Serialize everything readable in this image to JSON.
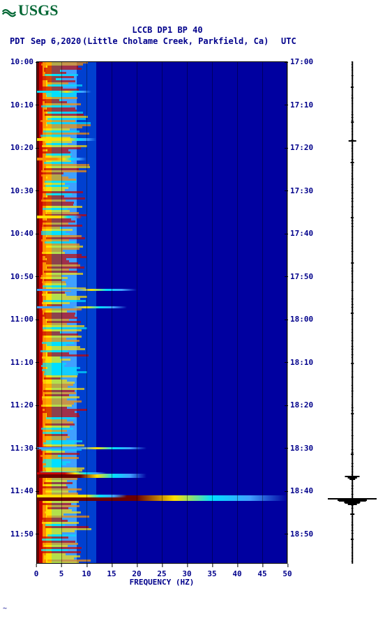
{
  "logo_text": "USGS",
  "title": "LCCB DP1 BP 40",
  "tz_left": "PDT",
  "date": "Sep 6,2020",
  "location": "(Little Cholame Creek, Parkfield, Ca)",
  "tz_right": "UTC",
  "xlabel": "FREQUENCY (HZ)",
  "footer": "~",
  "spectrogram": {
    "type": "spectrogram",
    "background_color": "#0000a0",
    "xlim": [
      0,
      50
    ],
    "ylim_left": [
      "10:00",
      "11:50"
    ],
    "ylim_right": [
      "17:00",
      "18:50"
    ],
    "x_ticks": [
      0,
      5,
      10,
      15,
      20,
      25,
      30,
      35,
      40,
      45,
      50
    ],
    "left_time_ticks": [
      "10:00",
      "10:10",
      "10:20",
      "10:30",
      "10:40",
      "10:50",
      "11:00",
      "11:10",
      "11:20",
      "11:30",
      "11:40",
      "11:50"
    ],
    "right_time_ticks": [
      "17:00",
      "17:10",
      "17:20",
      "17:30",
      "17:40",
      "17:50",
      "18:00",
      "18:10",
      "18:20",
      "18:30",
      "18:40",
      "18:50"
    ],
    "palette": {
      "darkred": "#6b0000",
      "red": "#c80000",
      "orange": "#ff9000",
      "yellow": "#ffe000",
      "cyan": "#00e0ff",
      "lightblue": "#40a0ff",
      "blue": "#0040d0",
      "darkblue": "#0000a0"
    },
    "bands": [
      {
        "freq_from": 0,
        "freq_to": 0.6,
        "color": "#6b0000"
      },
      {
        "freq_from": 0.6,
        "freq_to": 1.2,
        "color": "#c80000"
      },
      {
        "freq_from": 1.2,
        "freq_to": 2.0,
        "color": "#ff9000"
      },
      {
        "freq_from": 2.0,
        "freq_to": 3.0,
        "color": "#ffe000"
      },
      {
        "freq_from": 3.0,
        "freq_to": 5.0,
        "color": "#00e0ff"
      },
      {
        "freq_from": 5.0,
        "freq_to": 8.0,
        "color": "#40a0ff"
      },
      {
        "freq_from": 8.0,
        "freq_to": 12.0,
        "color": "#0040d0"
      },
      {
        "freq_from": 12.0,
        "freq_to": 50.0,
        "color": "#0000a0"
      }
    ],
    "events": [
      {
        "time_frac": 0.825,
        "freq_to": 22,
        "intensity": "#6b0000",
        "height": 6
      },
      {
        "time_frac": 0.82,
        "freq_to": 14,
        "intensity": "#c80000",
        "height": 3
      },
      {
        "time_frac": 0.87,
        "freq_to": 50,
        "intensity": "#6b0000",
        "height": 8
      },
      {
        "time_frac": 0.865,
        "freq_to": 18,
        "intensity": "#ffe000",
        "height": 4
      },
      {
        "time_frac": 0.155,
        "freq_to": 12,
        "intensity": "#ffe000",
        "height": 4
      },
      {
        "time_frac": 0.195,
        "freq_to": 10,
        "intensity": "#ff9000",
        "height": 4
      },
      {
        "time_frac": 0.31,
        "freq_to": 9,
        "intensity": "#ffe000",
        "height": 4
      },
      {
        "time_frac": 0.06,
        "freq_to": 11,
        "intensity": "#00e0ff",
        "height": 3
      },
      {
        "time_frac": 0.455,
        "freq_to": 20,
        "intensity": "#40a0ff",
        "height": 3
      },
      {
        "time_frac": 0.49,
        "freq_to": 18,
        "intensity": "#40a0ff",
        "height": 3
      },
      {
        "time_frac": 0.77,
        "freq_to": 22,
        "intensity": "#40a0ff",
        "height": 3
      }
    ],
    "gridline_color": "#000000",
    "tick_fontsize": 11,
    "label_fontsize": 11,
    "text_color": "#00008b"
  },
  "waveform": {
    "type": "seismogram",
    "line_color": "#000000",
    "baseline_width": 1.5,
    "spikes": [
      {
        "time_frac": 0.05,
        "amp": 0.06
      },
      {
        "time_frac": 0.12,
        "amp": 0.05
      },
      {
        "time_frac": 0.157,
        "amp": 0.15
      },
      {
        "time_frac": 0.2,
        "amp": 0.07
      },
      {
        "time_frac": 0.31,
        "amp": 0.06
      },
      {
        "time_frac": 0.4,
        "amp": 0.05
      },
      {
        "time_frac": 0.5,
        "amp": 0.06
      },
      {
        "time_frac": 0.6,
        "amp": 0.05
      },
      {
        "time_frac": 0.7,
        "amp": 0.05
      },
      {
        "time_frac": 0.78,
        "amp": 0.06
      },
      {
        "time_frac": 0.825,
        "amp": 0.3
      },
      {
        "time_frac": 0.828,
        "amp": 0.18
      },
      {
        "time_frac": 0.87,
        "amp": 1.0
      },
      {
        "time_frac": 0.874,
        "amp": 0.55
      },
      {
        "time_frac": 0.878,
        "amp": 0.3
      },
      {
        "time_frac": 0.9,
        "amp": 0.08
      },
      {
        "time_frac": 0.95,
        "amp": 0.06
      }
    ]
  }
}
